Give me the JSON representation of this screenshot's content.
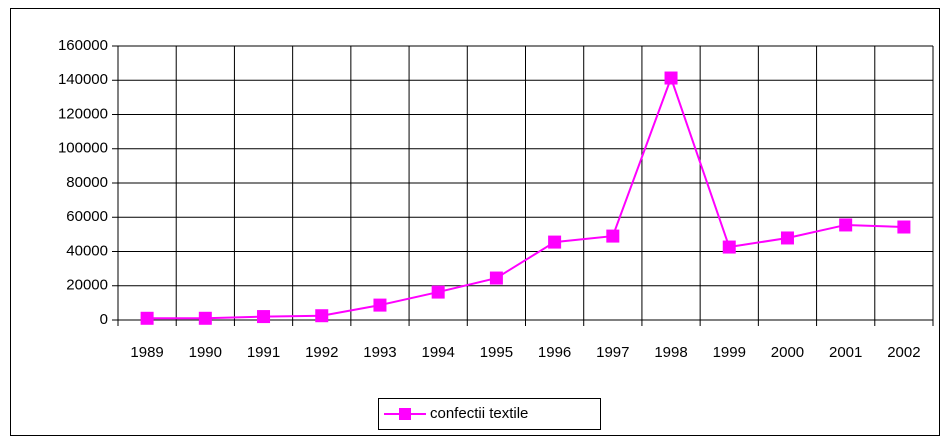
{
  "chart_data": {
    "type": "line",
    "categories": [
      "1989",
      "1990",
      "1991",
      "1992",
      "1993",
      "1994",
      "1995",
      "1996",
      "1997",
      "1998",
      "1999",
      "2000",
      "2001",
      "2002"
    ],
    "series": [
      {
        "name": "confectii textile",
        "color": "#ff00ff",
        "values": [
          1000,
          1000,
          2000,
          2500,
          8700,
          16300,
          24500,
          45500,
          49000,
          141300,
          42600,
          47900,
          55500,
          54300
        ]
      }
    ],
    "ylim": [
      0,
      160000
    ],
    "yticks": [
      0,
      20000,
      40000,
      60000,
      80000,
      100000,
      120000,
      140000,
      160000
    ],
    "grid": true,
    "legend": "bottom"
  }
}
